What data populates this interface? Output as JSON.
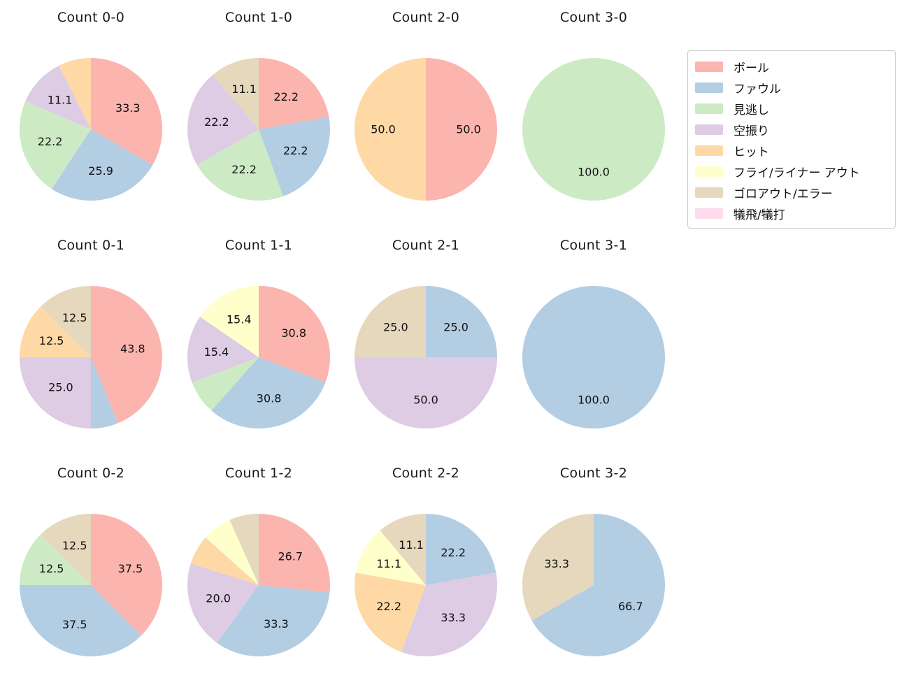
{
  "legend": {
    "items": [
      {
        "label": "ボール",
        "color": "#fbb4ae"
      },
      {
        "label": "ファウル",
        "color": "#b3cde3"
      },
      {
        "label": "見逃し",
        "color": "#ccebc5"
      },
      {
        "label": "空振り",
        "color": "#decbe4"
      },
      {
        "label": "ヒット",
        "color": "#fed9a6"
      },
      {
        "label": "フライ/ライナー アウト",
        "color": "#ffffcc"
      },
      {
        "label": "ゴロアウト/エラー",
        "color": "#e5d8bd"
      },
      {
        "label": "犠飛/犠打",
        "color": "#fddaec"
      }
    ]
  },
  "chart_data": [
    {
      "type": "pie",
      "title": "Count 0-0",
      "start_angle_deg": 90,
      "direction": "clockwise",
      "slices": [
        {
          "category": "ボール",
          "value": 33.3,
          "label": "33.3"
        },
        {
          "category": "ファウル",
          "value": 25.9,
          "label": "25.9"
        },
        {
          "category": "見逃し",
          "value": 22.2,
          "label": "22.2"
        },
        {
          "category": "空振り",
          "value": 11.1,
          "label": "11.1"
        },
        {
          "category": "ヒット",
          "value": 7.4,
          "label": ""
        }
      ]
    },
    {
      "type": "pie",
      "title": "Count 1-0",
      "start_angle_deg": 90,
      "direction": "clockwise",
      "slices": [
        {
          "category": "ボール",
          "value": 22.2,
          "label": "22.2"
        },
        {
          "category": "ファウル",
          "value": 22.2,
          "label": "22.2"
        },
        {
          "category": "見逃し",
          "value": 22.2,
          "label": "22.2"
        },
        {
          "category": "空振り",
          "value": 22.2,
          "label": "22.2"
        },
        {
          "category": "ゴロアウト/エラー",
          "value": 11.1,
          "label": "11.1"
        }
      ]
    },
    {
      "type": "pie",
      "title": "Count 2-0",
      "start_angle_deg": 90,
      "direction": "clockwise",
      "slices": [
        {
          "category": "ボール",
          "value": 50.0,
          "label": "50.0"
        },
        {
          "category": "ヒット",
          "value": 50.0,
          "label": "50.0"
        }
      ]
    },
    {
      "type": "pie",
      "title": "Count 3-0",
      "start_angle_deg": 90,
      "direction": "clockwise",
      "slices": [
        {
          "category": "見逃し",
          "value": 100.0,
          "label": "100.0"
        }
      ]
    },
    {
      "type": "pie",
      "title": "Count 0-1",
      "start_angle_deg": 90,
      "direction": "clockwise",
      "slices": [
        {
          "category": "ボール",
          "value": 43.8,
          "label": "43.8"
        },
        {
          "category": "ファウル",
          "value": 6.2,
          "label": ""
        },
        {
          "category": "空振り",
          "value": 25.0,
          "label": "25.0"
        },
        {
          "category": "ヒット",
          "value": 12.5,
          "label": "12.5"
        },
        {
          "category": "ゴロアウト/エラー",
          "value": 12.5,
          "label": "12.5"
        }
      ]
    },
    {
      "type": "pie",
      "title": "Count 1-1",
      "start_angle_deg": 90,
      "direction": "clockwise",
      "slices": [
        {
          "category": "ボール",
          "value": 30.8,
          "label": "30.8"
        },
        {
          "category": "ファウル",
          "value": 30.8,
          "label": "30.8"
        },
        {
          "category": "見逃し",
          "value": 7.7,
          "label": ""
        },
        {
          "category": "空振り",
          "value": 15.4,
          "label": "15.4"
        },
        {
          "category": "フライ/ライナー アウト",
          "value": 15.4,
          "label": "15.4"
        }
      ]
    },
    {
      "type": "pie",
      "title": "Count 2-1",
      "start_angle_deg": 90,
      "direction": "clockwise",
      "slices": [
        {
          "category": "ファウル",
          "value": 25.0,
          "label": "25.0"
        },
        {
          "category": "空振り",
          "value": 50.0,
          "label": "50.0"
        },
        {
          "category": "ゴロアウト/エラー",
          "value": 25.0,
          "label": "25.0"
        }
      ]
    },
    {
      "type": "pie",
      "title": "Count 3-1",
      "start_angle_deg": 90,
      "direction": "clockwise",
      "slices": [
        {
          "category": "ファウル",
          "value": 100.0,
          "label": "100.0"
        }
      ]
    },
    {
      "type": "pie",
      "title": "Count 0-2",
      "start_angle_deg": 90,
      "direction": "clockwise",
      "slices": [
        {
          "category": "ボール",
          "value": 37.5,
          "label": "37.5"
        },
        {
          "category": "ファウル",
          "value": 37.5,
          "label": "37.5"
        },
        {
          "category": "見逃し",
          "value": 12.5,
          "label": "12.5"
        },
        {
          "category": "ゴロアウト/エラー",
          "value": 12.5,
          "label": "12.5"
        }
      ]
    },
    {
      "type": "pie",
      "title": "Count 1-2",
      "start_angle_deg": 90,
      "direction": "clockwise",
      "slices": [
        {
          "category": "ボール",
          "value": 26.7,
          "label": "26.7"
        },
        {
          "category": "ファウル",
          "value": 33.3,
          "label": "33.3"
        },
        {
          "category": "空振り",
          "value": 20.0,
          "label": "20.0"
        },
        {
          "category": "ヒット",
          "value": 6.7,
          "label": ""
        },
        {
          "category": "フライ/ライナー アウト",
          "value": 6.7,
          "label": ""
        },
        {
          "category": "ゴロアウト/エラー",
          "value": 6.7,
          "label": ""
        }
      ]
    },
    {
      "type": "pie",
      "title": "Count 2-2",
      "start_angle_deg": 90,
      "direction": "clockwise",
      "slices": [
        {
          "category": "ファウル",
          "value": 22.2,
          "label": "22.2"
        },
        {
          "category": "空振り",
          "value": 33.3,
          "label": "33.3"
        },
        {
          "category": "ヒット",
          "value": 22.2,
          "label": "22.2"
        },
        {
          "category": "フライ/ライナー アウト",
          "value": 11.1,
          "label": "11.1"
        },
        {
          "category": "ゴロアウト/エラー",
          "value": 11.1,
          "label": "11.1"
        }
      ]
    },
    {
      "type": "pie",
      "title": "Count 3-2",
      "start_angle_deg": 90,
      "direction": "clockwise",
      "slices": [
        {
          "category": "ファウル",
          "value": 66.7,
          "label": "66.7"
        },
        {
          "category": "ゴロアウト/エラー",
          "value": 33.3,
          "label": "33.3"
        }
      ]
    }
  ]
}
